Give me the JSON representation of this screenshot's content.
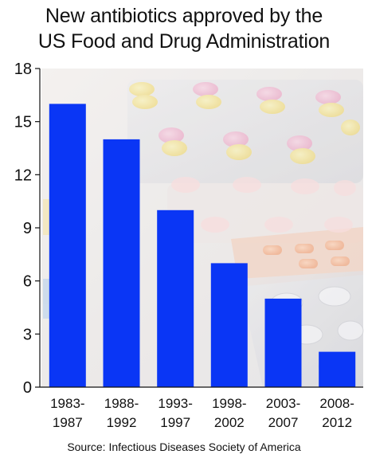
{
  "chart_data": {
    "type": "bar",
    "title": [
      "New antibiotics approved by the",
      "US Food and Drug Administration"
    ],
    "categories": [
      [
        "1983-",
        "1987"
      ],
      [
        "1988-",
        "1992"
      ],
      [
        "1993-",
        "1997"
      ],
      [
        "1998-",
        "2002"
      ],
      [
        "2003-",
        "2007"
      ],
      [
        "2008-",
        "2012"
      ]
    ],
    "values": [
      16,
      14,
      10,
      7,
      5,
      2
    ],
    "ylim": [
      0,
      18
    ],
    "yticks": [
      0,
      3,
      6,
      9,
      12,
      15,
      18
    ],
    "xlabel": "",
    "ylabel": "",
    "grid": false,
    "bar_color": "#0a36f5",
    "background_photo": "pills-and-blister-packs",
    "source": "Source:  Infectious Diseases Society of America"
  }
}
